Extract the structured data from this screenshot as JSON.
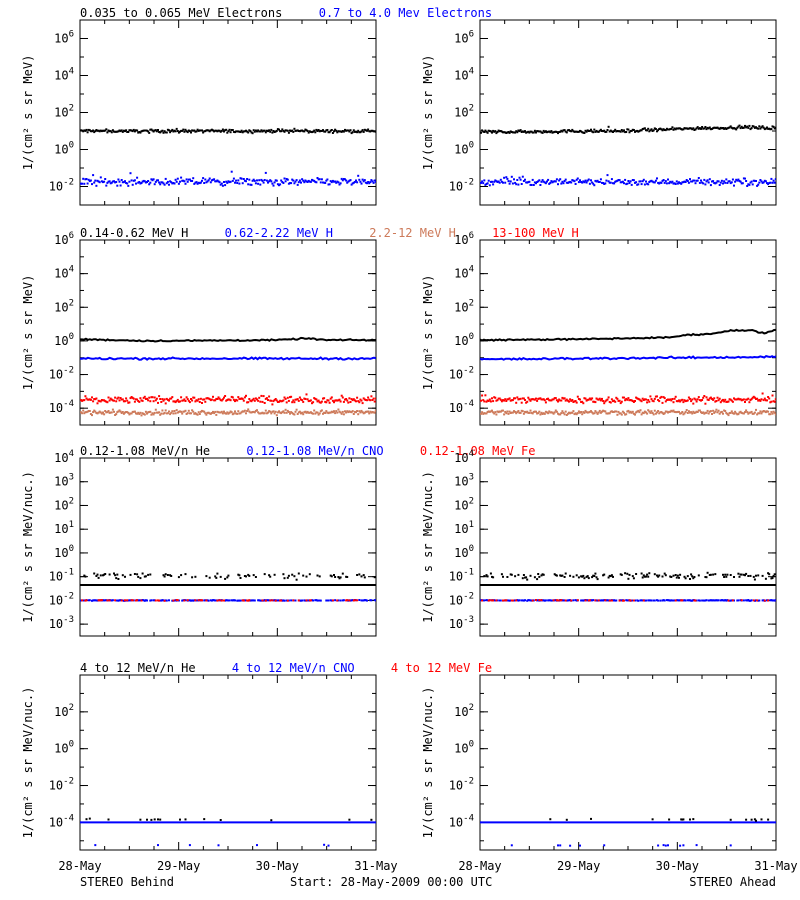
{
  "chart_data": [
    {
      "type": "scatter",
      "row": 1,
      "column": "left",
      "ylabel": "1/(cm² s sr MeV)",
      "yscale": "log",
      "ylim_exp": [
        -3,
        7
      ],
      "yticks": [
        {
          "e": -2,
          "sup": "-2"
        },
        {
          "e": 0,
          "sup": "0"
        },
        {
          "e": 2,
          "sup": "2"
        },
        {
          "e": 4,
          "sup": "4"
        },
        {
          "e": 6,
          "sup": "6"
        }
      ],
      "xlim_days": [
        0,
        3
      ],
      "xtick_labels": [
        "28-May",
        "29-May",
        "30-May",
        "31-May"
      ],
      "legend": [
        {
          "text": "0.035 to 0.065 MeV Electrons",
          "color": "#000000"
        },
        {
          "text": "0.7 to 4.0 Mev Electrons",
          "color": "#0000ff"
        }
      ],
      "series": [
        {
          "name": "0.035 to 0.065 MeV Electrons",
          "color": "#000000",
          "style": "dots",
          "level": 1.0,
          "scatter": 0.06,
          "outliers": 0.01
        },
        {
          "name": "0.7 to 4.0 Mev Electrons",
          "color": "#0000ff",
          "style": "dots",
          "level": -1.75,
          "scatter": 0.14,
          "outliers": 0.04
        }
      ]
    },
    {
      "type": "scatter",
      "row": 1,
      "column": "right",
      "ylabel": "1/(cm² s sr MeV)",
      "yscale": "log",
      "ylim_exp": [
        -3,
        7
      ],
      "yticks": [
        {
          "e": -2,
          "sup": "-2"
        },
        {
          "e": 0,
          "sup": "0"
        },
        {
          "e": 2,
          "sup": "2"
        },
        {
          "e": 4,
          "sup": "4"
        },
        {
          "e": 6,
          "sup": "6"
        }
      ],
      "xlim_days": [
        0,
        3
      ],
      "xtick_labels": [
        "28-May",
        "29-May",
        "30-May",
        "31-May"
      ],
      "series": [
        {
          "name": "0.035 to 0.065 MeV Electrons",
          "color": "#000000",
          "style": "dots",
          "level": 0.95,
          "scatter": 0.06,
          "outliers": 0.01,
          "ramp": [
            [
              0,
              0.95
            ],
            [
              1.5,
              1.0
            ],
            [
              2.2,
              1.15
            ],
            [
              2.7,
              1.2
            ],
            [
              3,
              1.15
            ]
          ]
        },
        {
          "name": "0.7 to 4.0 Mev Electrons",
          "color": "#0000ff",
          "style": "dots",
          "level": -1.75,
          "scatter": 0.12,
          "outliers": 0.02
        }
      ]
    },
    {
      "type": "scatter",
      "row": 2,
      "column": "left",
      "ylabel": "1/(cm² s sr MeV)",
      "yscale": "log",
      "ylim_exp": [
        -5,
        6
      ],
      "yticks": [
        {
          "e": -4,
          "sup": "-4"
        },
        {
          "e": -2,
          "sup": "-2"
        },
        {
          "e": 0,
          "sup": "0"
        },
        {
          "e": 2,
          "sup": "2"
        },
        {
          "e": 4,
          "sup": "4"
        },
        {
          "e": 6,
          "sup": "6"
        }
      ],
      "xlim_days": [
        0,
        3
      ],
      "xtick_labels": [
        "28-May",
        "29-May",
        "30-May",
        "31-May"
      ],
      "legend": [
        {
          "text": "0.14-0.62 MeV H",
          "color": "#000000"
        },
        {
          "text": "0.62-2.22 MeV H",
          "color": "#0000ff"
        },
        {
          "text": "2.2-12 MeV H",
          "color": "#cd7a5a"
        },
        {
          "text": "13-100 MeV H",
          "color": "#ff0000"
        }
      ],
      "series": [
        {
          "name": "0.14-0.62 MeV H",
          "color": "#000000",
          "style": "line",
          "level": 0.05,
          "scatter": 0.03,
          "outliers": 0,
          "ramp": [
            [
              0,
              0.1
            ],
            [
              0.7,
              0.0
            ],
            [
              2.0,
              0.05
            ],
            [
              2.3,
              0.15
            ],
            [
              2.5,
              0.05
            ],
            [
              3,
              0.05
            ]
          ]
        },
        {
          "name": "0.62-2.22 MeV H",
          "color": "#0000ff",
          "style": "line",
          "level": -1.05,
          "scatter": 0.04,
          "outliers": 0
        },
        {
          "name": "2.2-12 MeV H",
          "color": "#cd7a5a",
          "style": "dots",
          "level": -4.25,
          "scatter": 0.1,
          "outliers": 0
        },
        {
          "name": "13-100 MeV H",
          "color": "#ff0000",
          "style": "dots",
          "level": -3.5,
          "scatter": 0.14,
          "outliers": 0.02
        }
      ]
    },
    {
      "type": "scatter",
      "row": 2,
      "column": "right",
      "ylabel": "1/(cm² s sr MeV)",
      "yscale": "log",
      "ylim_exp": [
        -5,
        6
      ],
      "yticks": [
        {
          "e": -4,
          "sup": "-4"
        },
        {
          "e": -2,
          "sup": "-2"
        },
        {
          "e": 0,
          "sup": "0"
        },
        {
          "e": 2,
          "sup": "2"
        },
        {
          "e": 4,
          "sup": "4"
        },
        {
          "e": 6,
          "sup": "6"
        }
      ],
      "xlim_days": [
        0,
        3
      ],
      "xtick_labels": [
        "28-May",
        "29-May",
        "30-May",
        "31-May"
      ],
      "series": [
        {
          "name": "0.14-0.62 MeV H",
          "color": "#000000",
          "style": "line",
          "level": 0.05,
          "scatter": 0.03,
          "outliers": 0,
          "ramp": [
            [
              0,
              0.05
            ],
            [
              1.0,
              0.1
            ],
            [
              1.9,
              0.2
            ],
            [
              2.1,
              0.35
            ],
            [
              2.4,
              0.45
            ],
            [
              2.5,
              0.6
            ],
            [
              2.75,
              0.65
            ],
            [
              2.88,
              0.45
            ],
            [
              3,
              0.7
            ]
          ]
        },
        {
          "name": "0.62-2.22 MeV H",
          "color": "#0000ff",
          "style": "line",
          "level": -1.05,
          "scatter": 0.04,
          "outliers": 0,
          "ramp": [
            [
              0,
              -1.1
            ],
            [
              2.0,
              -1.0
            ],
            [
              3,
              -0.95
            ]
          ]
        },
        {
          "name": "2.2-12 MeV H",
          "color": "#cd7a5a",
          "style": "dots",
          "level": -4.25,
          "scatter": 0.1,
          "outliers": 0
        },
        {
          "name": "13-100 MeV H",
          "color": "#ff0000",
          "style": "dots",
          "level": -3.5,
          "scatter": 0.14,
          "outliers": 0.02
        }
      ]
    },
    {
      "type": "scatter",
      "row": 3,
      "column": "left",
      "ylabel": "1/(cm² s sr MeV/nuc.)",
      "yscale": "log",
      "ylim_exp": [
        -3.5,
        4
      ],
      "yticks": [
        {
          "e": -3,
          "sup": "-3"
        },
        {
          "e": -2,
          "sup": "-2"
        },
        {
          "e": -1,
          "sup": "-1"
        },
        {
          "e": 0,
          "sup": "0"
        },
        {
          "e": 1,
          "sup": "1"
        },
        {
          "e": 2,
          "sup": "2"
        },
        {
          "e": 3,
          "sup": "3"
        },
        {
          "e": 4,
          "sup": "4"
        }
      ],
      "xlim_days": [
        0,
        3
      ],
      "xtick_labels": [
        "28-May",
        "29-May",
        "30-May",
        "31-May"
      ],
      "legend": [
        {
          "text": "0.12-1.08 MeV/n He",
          "color": "#000000"
        },
        {
          "text": "0.12-1.08 MeV/n CNO",
          "color": "#0000ff"
        },
        {
          "text": "0.12-1.08 MeV Fe",
          "color": "#ff0000"
        }
      ],
      "series": [
        {
          "name": "0.12-1.08 MeV/n He",
          "color": "#000000",
          "style": "line",
          "level": -1.35,
          "scatter": 0,
          "outliers": 0
        },
        {
          "name": "0.12-1.08 MeV/n He",
          "color": "#000000",
          "style": "sparse",
          "level": -0.97,
          "scatter": 0.08,
          "outliers": 0,
          "density": 0.35
        },
        {
          "name": "0.12-1.08 MeV/n CNO",
          "color": "#0000ff",
          "style": "sparse",
          "level": -2.0,
          "scatter": 0.01,
          "outliers": 0,
          "density": 0.8
        },
        {
          "name": "0.12-1.08 MeV Fe",
          "color": "#ff0000",
          "style": "sparse",
          "level": -2.0,
          "scatter": 0.01,
          "outliers": 0,
          "density": 0.2
        }
      ]
    },
    {
      "type": "scatter",
      "row": 3,
      "column": "right",
      "ylabel": "1/(cm² s sr MeV/nuc.)",
      "yscale": "log",
      "ylim_exp": [
        -3.5,
        4
      ],
      "yticks": [
        {
          "e": -3,
          "sup": "-3"
        },
        {
          "e": -2,
          "sup": "-2"
        },
        {
          "e": -1,
          "sup": "-1"
        },
        {
          "e": 0,
          "sup": "0"
        },
        {
          "e": 1,
          "sup": "1"
        },
        {
          "e": 2,
          "sup": "2"
        },
        {
          "e": 3,
          "sup": "3"
        },
        {
          "e": 4,
          "sup": "4"
        }
      ],
      "xlim_days": [
        0,
        3
      ],
      "xtick_labels": [
        "28-May",
        "29-May",
        "30-May",
        "31-May"
      ],
      "series": [
        {
          "name": "0.12-1.08 MeV/n He",
          "color": "#000000",
          "style": "line",
          "level": -1.35,
          "scatter": 0,
          "outliers": 0
        },
        {
          "name": "0.12-1.08 MeV/n He",
          "color": "#000000",
          "style": "sparse",
          "level": -0.97,
          "scatter": 0.1,
          "outliers": 0,
          "density": 0.45
        },
        {
          "name": "0.12-1.08 MeV/n CNO",
          "color": "#0000ff",
          "style": "sparse",
          "level": -2.0,
          "scatter": 0.01,
          "outliers": 0,
          "density": 0.8
        },
        {
          "name": "0.12-1.08 MeV Fe",
          "color": "#ff0000",
          "style": "sparse",
          "level": -2.0,
          "scatter": 0.01,
          "outliers": 0,
          "density": 0.2
        }
      ]
    },
    {
      "type": "scatter",
      "row": 4,
      "column": "left",
      "ylabel": "1/(cm² s sr MeV/nuc.)",
      "yscale": "log",
      "ylim_exp": [
        -5.5,
        4
      ],
      "yticks": [
        {
          "e": -4,
          "sup": "-4"
        },
        {
          "e": -2,
          "sup": "-2"
        },
        {
          "e": 0,
          "sup": "0"
        },
        {
          "e": 2,
          "sup": "2"
        }
      ],
      "xlim_days": [
        0,
        3
      ],
      "xtick_labels": [
        "28-May",
        "29-May",
        "30-May",
        "31-May"
      ],
      "legend": [
        {
          "text": "4 to 12 MeV/n He",
          "color": "#000000"
        },
        {
          "text": "4 to 12 MeV/n CNO",
          "color": "#0000ff"
        },
        {
          "text": "4 to 12 MeV Fe",
          "color": "#ff0000"
        }
      ],
      "series": [
        {
          "name": "4 to 12 MeV/n CNO",
          "color": "#0000ff",
          "style": "line",
          "level": -4.0,
          "scatter": 0,
          "outliers": 0
        },
        {
          "name": "4 to 12 MeV/n He",
          "color": "#000000",
          "style": "sparse",
          "level": -3.85,
          "scatter": 0.03,
          "outliers": 0,
          "density": 0.06
        },
        {
          "name": "4 to 12 MeV/n CNO",
          "color": "#0000ff",
          "style": "sparse",
          "level": -5.25,
          "scatter": 0.02,
          "outliers": 0,
          "density": 0.04
        }
      ]
    },
    {
      "type": "scatter",
      "row": 4,
      "column": "right",
      "ylabel": "1/(cm² s sr MeV/nuc.)",
      "yscale": "log",
      "ylim_exp": [
        -5.5,
        4
      ],
      "yticks": [
        {
          "e": -4,
          "sup": "-4"
        },
        {
          "e": -2,
          "sup": "-2"
        },
        {
          "e": 0,
          "sup": "0"
        },
        {
          "e": 2,
          "sup": "2"
        }
      ],
      "xlim_days": [
        0,
        3
      ],
      "xtick_labels": [
        "28-May",
        "29-May",
        "30-May",
        "31-May"
      ],
      "series": [
        {
          "name": "4 to 12 MeV/n CNO",
          "color": "#0000ff",
          "style": "line",
          "level": -4.0,
          "scatter": 0,
          "outliers": 0
        },
        {
          "name": "4 to 12 MeV/n He",
          "color": "#000000",
          "style": "sparse",
          "level": -3.85,
          "scatter": 0.03,
          "outliers": 0,
          "density": 0.06
        },
        {
          "name": "4 to 12 MeV/n CNO",
          "color": "#0000ff",
          "style": "sparse",
          "level": -5.25,
          "scatter": 0.02,
          "outliers": 0,
          "density": 0.03
        }
      ]
    }
  ],
  "footer": {
    "left": "STEREO Behind",
    "center": "Start: 28-May-2009 00:00 UTC",
    "right": "STEREO Ahead"
  }
}
